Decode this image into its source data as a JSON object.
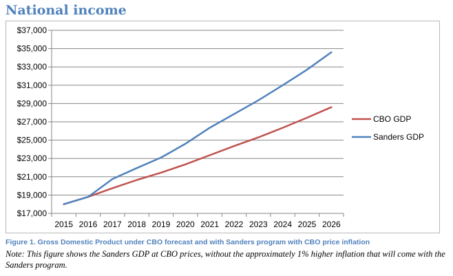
{
  "header": {
    "title": "National income"
  },
  "chart_data": {
    "type": "line",
    "title": "",
    "xlabel": "",
    "ylabel": "",
    "x": [
      2015,
      2016,
      2017,
      2018,
      2019,
      2020,
      2021,
      2022,
      2023,
      2024,
      2025,
      2026
    ],
    "x_labels": [
      "2015",
      "2016",
      "2017",
      "2018",
      "2019",
      "2020",
      "2021",
      "2022",
      "2023",
      "2024",
      "2025",
      "2026"
    ],
    "ylim": [
      17000,
      37000
    ],
    "y_ticks": [
      17000,
      19000,
      21000,
      23000,
      25000,
      27000,
      29000,
      31000,
      33000,
      35000,
      37000
    ],
    "y_tick_labels": [
      "$17,000",
      "$19,000",
      "$21,000",
      "$23,000",
      "$25,000",
      "$27,000",
      "$29,000",
      "$31,000",
      "$33,000",
      "$35,000",
      "$37,000"
    ],
    "grid": true,
    "legend_position": "right",
    "series": [
      {
        "name": "CBO GDP",
        "color": "#c0504d",
        "values": [
          18000,
          18800,
          19750,
          20650,
          21450,
          22350,
          23350,
          24350,
          25300,
          26350,
          27450,
          28600
        ]
      },
      {
        "name": "Sanders GDP",
        "color": "#4f81bd",
        "values": [
          18000,
          18800,
          20750,
          21950,
          23100,
          24600,
          26350,
          27850,
          29350,
          31000,
          32700,
          34600
        ]
      }
    ]
  },
  "caption": {
    "figure": "Figure 1.  Gross Domestic Product under CBO forecast and with Sanders program with CBO price inflation",
    "note": "Note: This figure shows the Sanders GDP at CBO prices, without the approximately 1% higher inflation that will come with the Sanders program."
  }
}
